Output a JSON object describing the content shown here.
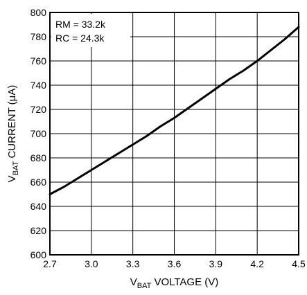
{
  "chart_data": {
    "type": "line",
    "title": "",
    "xlabel": {
      "main": "V",
      "sub": "BAT",
      "rest": " VOLTAGE (V)"
    },
    "ylabel": {
      "main": "V",
      "sub": "BAT",
      "rest": " CURRENT (μA)"
    },
    "xlim": [
      2.7,
      4.5
    ],
    "ylim": [
      600,
      800
    ],
    "xticks": [
      2.7,
      3.0,
      3.3,
      3.6,
      3.9,
      4.2,
      4.5
    ],
    "xtick_labels": [
      "2.7",
      "3.0",
      "3.3",
      "3.6",
      "3.9",
      "4.2",
      "4.5"
    ],
    "yticks": [
      600,
      620,
      640,
      660,
      680,
      700,
      720,
      740,
      760,
      780,
      800
    ],
    "ytick_labels": [
      "600",
      "620",
      "640",
      "660",
      "680",
      "700",
      "720",
      "740",
      "760",
      "780",
      "800"
    ],
    "grid": true,
    "annotations": [
      "RM = 33.2k",
      "RC = 24.3k"
    ],
    "series": [
      {
        "x": [
          2.7,
          2.8,
          2.9,
          3.0,
          3.1,
          3.2,
          3.3,
          3.4,
          3.5,
          3.6,
          3.7,
          3.8,
          3.9,
          4.0,
          4.1,
          4.2,
          4.3,
          4.4,
          4.5
        ],
        "y": [
          650,
          656,
          663,
          670,
          677,
          684,
          691,
          698,
          706,
          713,
          721,
          729,
          737,
          745,
          752,
          760,
          769,
          778,
          788
        ]
      }
    ]
  }
}
